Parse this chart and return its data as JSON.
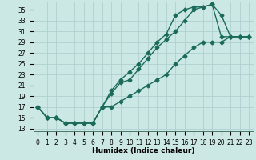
{
  "xlabel": "Humidex (Indice chaleur)",
  "bg_color": "#cce8e4",
  "grid_color": "#aacccc",
  "line_color": "#1a6b5a",
  "xlim": [
    -0.5,
    23.5
  ],
  "ylim": [
    12.5,
    36.5
  ],
  "xticks": [
    0,
    1,
    2,
    3,
    4,
    5,
    6,
    7,
    8,
    9,
    10,
    11,
    12,
    13,
    14,
    15,
    16,
    17,
    18,
    19,
    20,
    21,
    22,
    23
  ],
  "yticks": [
    13,
    15,
    17,
    19,
    21,
    23,
    25,
    27,
    29,
    31,
    33,
    35
  ],
  "line1_x": [
    0,
    1,
    2,
    3,
    4,
    5,
    6,
    7,
    8,
    9,
    10,
    11,
    12,
    13,
    14,
    15,
    16,
    17,
    18,
    19,
    20,
    21,
    22,
    23
  ],
  "line1_y": [
    17,
    15,
    15,
    14,
    14,
    14,
    14,
    17,
    19.5,
    21.5,
    22,
    24,
    26,
    28,
    29.5,
    31,
    33,
    35,
    35.5,
    36,
    34,
    30,
    30,
    30
  ],
  "line2_x": [
    0,
    1,
    2,
    3,
    4,
    5,
    6,
    7,
    8,
    9,
    10,
    11,
    12,
    13,
    14,
    15,
    16,
    17,
    18,
    19,
    20,
    21,
    22,
    23
  ],
  "line2_y": [
    17,
    15,
    15,
    14,
    14,
    14,
    14,
    17,
    20,
    22,
    23.5,
    25,
    27,
    29,
    30.5,
    34,
    35,
    35.5,
    35.5,
    36,
    30,
    30,
    30,
    30
  ],
  "line3_x": [
    0,
    1,
    2,
    3,
    4,
    5,
    6,
    7,
    8,
    9,
    10,
    11,
    12,
    13,
    14,
    15,
    16,
    17,
    18,
    19,
    20,
    21,
    22,
    23
  ],
  "line3_y": [
    17,
    15,
    15,
    14,
    14,
    14,
    14,
    17,
    17,
    18,
    19,
    20,
    21,
    22,
    23,
    25,
    26.5,
    28,
    29,
    29,
    29,
    30,
    30,
    30
  ],
  "marker": "D",
  "markersize": 2.5,
  "linewidth": 1.0,
  "tick_fontsize": 5.5,
  "xlabel_fontsize": 6.5
}
